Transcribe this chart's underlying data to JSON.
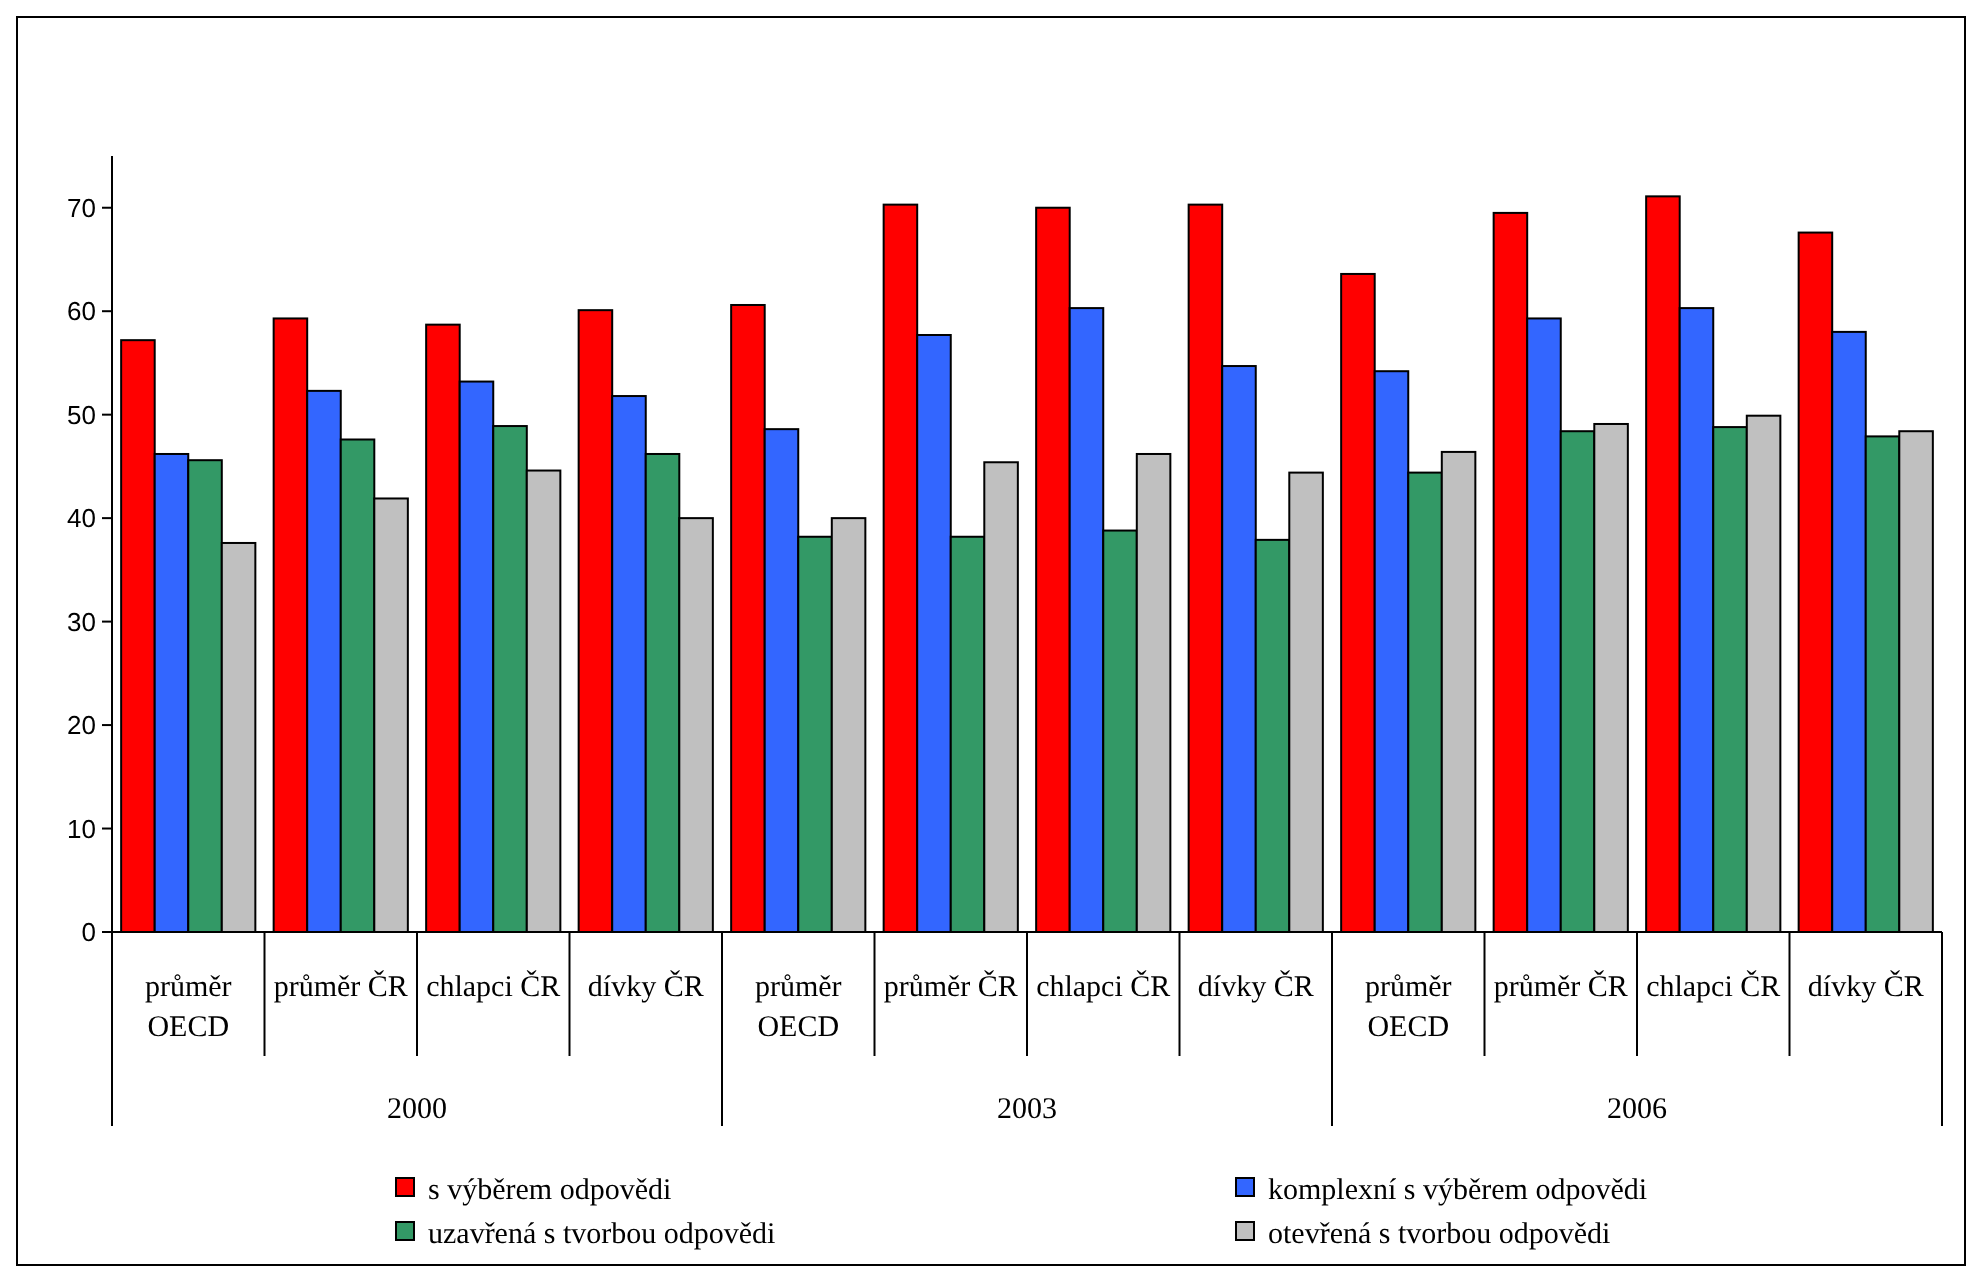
{
  "chart_data": {
    "type": "bar",
    "categories": [
      "průměr OECD",
      "průměr ČR",
      "chlapci ČR",
      "dívky ČR",
      "průměr OECD",
      "průměr ČR",
      "chlapci ČR",
      "dívky ČR",
      "průměr OECD",
      "průměr ČR",
      "chlapci ČR",
      "dívky ČR"
    ],
    "annotations": [
      "2000",
      "2003",
      "2006"
    ],
    "series": [
      {
        "name": "s výběrem odpovědi",
        "color": "#ff0000",
        "values": [
          57.2,
          59.3,
          58.7,
          60.1,
          60.6,
          70.3,
          70.0,
          70.3,
          63.6,
          69.5,
          71.1,
          67.6
        ]
      },
      {
        "name": "komplexní s výběrem odpovědi",
        "color": "#3366ff",
        "values": [
          46.2,
          52.3,
          53.2,
          51.8,
          48.6,
          57.7,
          60.3,
          54.7,
          54.2,
          59.3,
          60.3,
          58.0
        ]
      },
      {
        "name": "uzavřená s tvorbou odpovědi",
        "color": "#339966",
        "values": [
          45.6,
          47.6,
          48.9,
          46.2,
          38.2,
          38.2,
          38.8,
          37.9,
          44.4,
          48.4,
          48.8,
          47.9
        ]
      },
      {
        "name": "otevřená s tvorbou odpovědi",
        "color": "#c0c0c0",
        "values": [
          37.6,
          41.9,
          44.6,
          40.0,
          40.0,
          45.4,
          46.2,
          44.4,
          46.4,
          49.1,
          49.9,
          48.4
        ]
      }
    ],
    "ylim": [
      0,
      75
    ],
    "yticks": [
      0,
      10,
      20,
      30,
      40,
      50,
      60,
      70
    ],
    "grid": false,
    "legend": "bottom"
  }
}
